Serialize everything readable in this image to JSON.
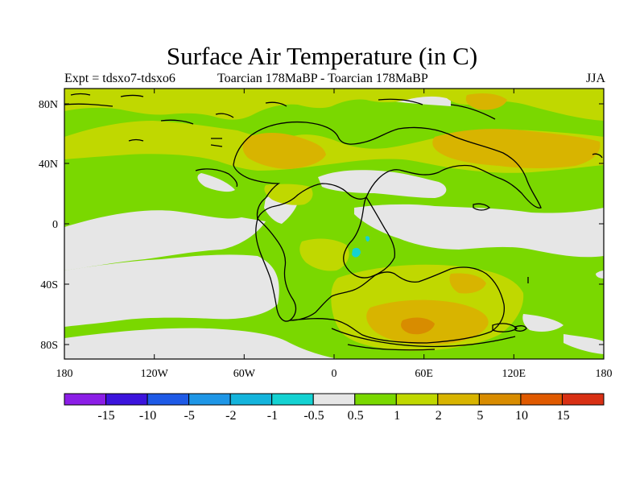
{
  "title": "Surface Air Temperature (in C)",
  "left_string": "Expt = tdsxo7-tdsxo6",
  "center_string": "Toarcian 178MaBP - Toarcian 178MaBP",
  "right_string": "JJA",
  "colors": {
    "background": "#ffffff",
    "land_outline": "#000000",
    "levels": [
      "#8b1ee6",
      "#3c14dc",
      "#1e5ae6",
      "#1e96e6",
      "#14b4dc",
      "#14d2d2",
      "#e6e6e6",
      "#7ad800",
      "#c0d800",
      "#d8b400",
      "#d88c00",
      "#e05a00",
      "#d83014"
    ]
  },
  "chart_data": {
    "type": "heatmap",
    "title": "Surface Air Temperature (in C)",
    "x_ticks": [
      "180",
      "120W",
      "60W",
      "0",
      "60E",
      "120E",
      "180"
    ],
    "y_ticks": [
      "80N",
      "40N",
      "0",
      "40S",
      "80S"
    ],
    "xlim": [
      -180,
      180
    ],
    "ylim": [
      -90,
      90
    ],
    "colorbar_labels": [
      "-15",
      "-10",
      "-5",
      "-2",
      "-1",
      "-0.5",
      "0.5",
      "1",
      "2",
      "5",
      "10",
      "15"
    ],
    "colorbar_levels": [
      -15,
      -10,
      -5,
      -2,
      -1,
      -0.5,
      0.5,
      1,
      2,
      5,
      10,
      15
    ]
  }
}
